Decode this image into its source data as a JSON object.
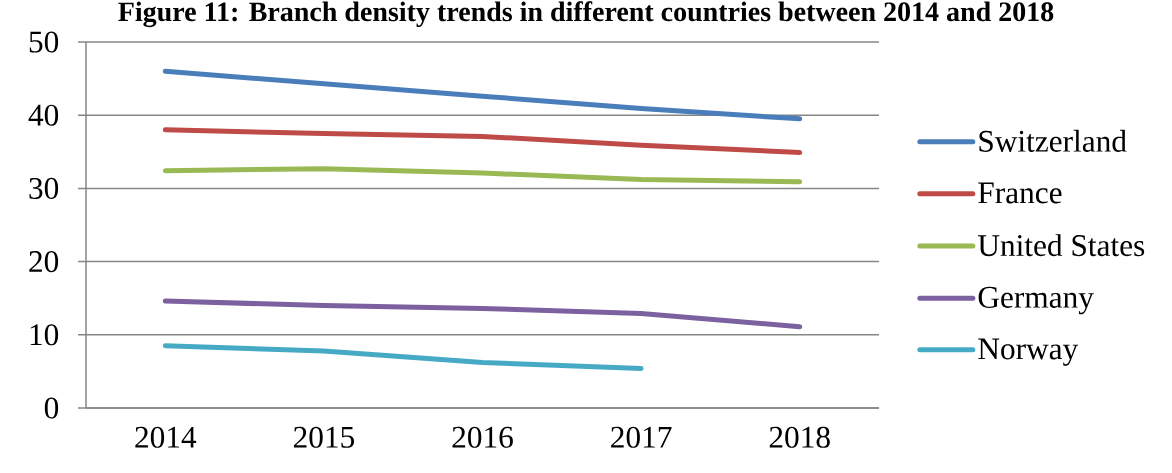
{
  "chart_data": {
    "type": "line",
    "title": "Figure 11: Branch density trends in different countries between 2014 and 2018",
    "categories": [
      "2014",
      "2015",
      "2016",
      "2017",
      "2018"
    ],
    "series": [
      {
        "name": "Switzerland",
        "color": "#4a7ebb",
        "values": [
          46.0,
          44.3,
          42.6,
          40.9,
          39.5
        ]
      },
      {
        "name": "France",
        "color": "#be4b48",
        "values": [
          38.0,
          37.5,
          37.1,
          35.9,
          34.9
        ]
      },
      {
        "name": "United States",
        "color": "#98b954",
        "values": [
          32.4,
          32.7,
          32.1,
          31.2,
          30.9
        ]
      },
      {
        "name": "Germany",
        "color": "#7d60a0",
        "values": [
          14.6,
          14.0,
          13.6,
          12.9,
          11.1
        ]
      },
      {
        "name": "Norway",
        "color": "#46aac5",
        "values": [
          8.5,
          7.8,
          6.2,
          5.4,
          null
        ]
      }
    ],
    "ylim": [
      0,
      50
    ],
    "yticks": [
      0,
      10,
      20,
      30,
      40,
      50
    ],
    "grid": "y",
    "legend": "right",
    "line_style": "solid"
  }
}
